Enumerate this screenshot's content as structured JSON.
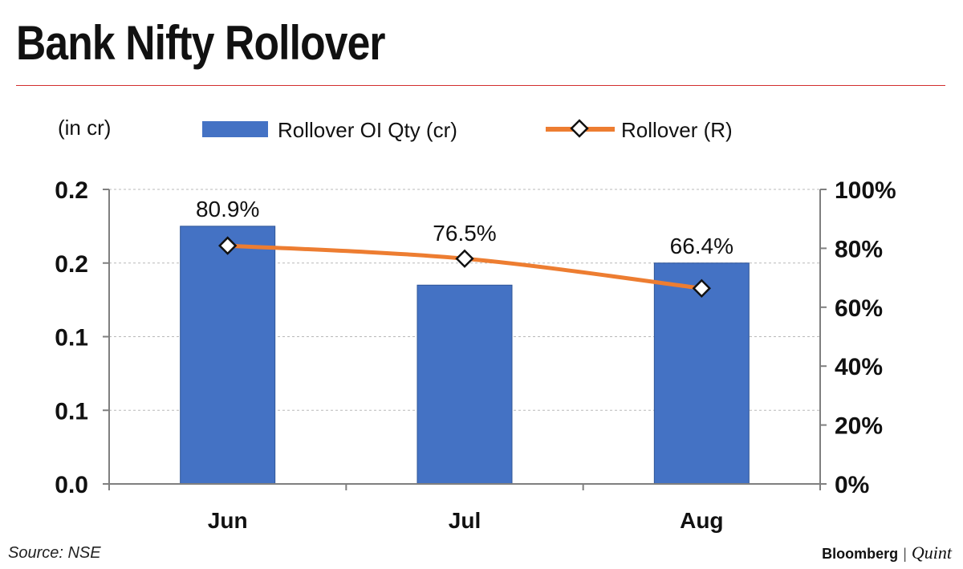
{
  "header": {
    "title": "Bank Nifty Rollover",
    "rule_color": "#d32f2f"
  },
  "footer": {
    "source": "Source: NSE",
    "brand_primary": "Bloomberg",
    "brand_separator": "|",
    "brand_secondary": "Quint"
  },
  "chart_data": {
    "type": "bar",
    "unit_label": "(in cr)",
    "categories": [
      "Jun",
      "Jul",
      "Aug"
    ],
    "series": [
      {
        "name": "Rollover OI Qty (cr)",
        "kind": "bar",
        "axis": "left",
        "color": "#4472c4",
        "values": [
          0.175,
          0.135,
          0.15
        ]
      },
      {
        "name": "Rollover (R)",
        "kind": "line",
        "axis": "right",
        "color": "#ed7d31",
        "values": [
          80.9,
          76.5,
          66.4
        ],
        "data_labels": [
          "80.9%",
          "76.5%",
          "66.4%"
        ]
      }
    ],
    "y_left": {
      "min": 0,
      "max": 0.2,
      "ticks": [
        0,
        0.05,
        0.1,
        0.15,
        0.2
      ],
      "tick_labels": [
        "0.0",
        "0.1",
        "0.1",
        "0.2",
        "0.2"
      ]
    },
    "y_right": {
      "min": 0,
      "max": 100,
      "ticks": [
        0,
        20,
        40,
        60,
        80,
        100
      ],
      "tick_labels": [
        "0%",
        "20%",
        "40%",
        "60%",
        "80%",
        "100%"
      ]
    },
    "grid": true,
    "legend_position": "top"
  }
}
